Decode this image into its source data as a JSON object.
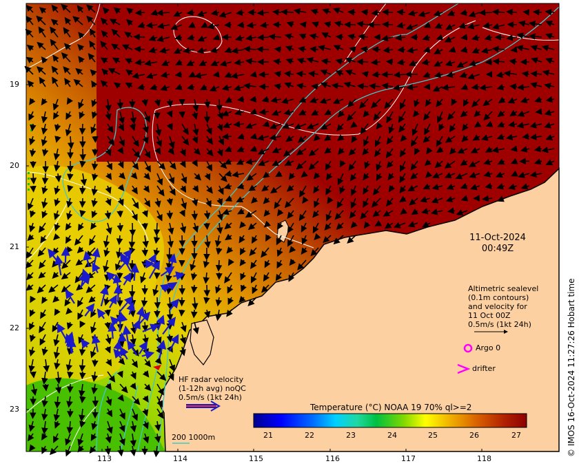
{
  "map": {
    "x_ticks": [
      "113",
      "114",
      "115",
      "116",
      "117",
      "118"
    ],
    "y_ticks": [
      "19",
      "20",
      "21",
      "22",
      "23"
    ],
    "colors": {
      "land": "#fcd0a0",
      "sea_warm": "#9e0000",
      "sea_mid": "#e07000",
      "sea_cool": "#d8c400",
      "sea_cold": "#66c800",
      "contour": "#ffffff",
      "isobath": "#40c8c8",
      "radar_arrows": "#1a1acc",
      "current_arrows": "#000000"
    }
  },
  "timestamp": {
    "date": "11-Oct-2024",
    "time": "00:49Z"
  },
  "altimetry_legend": {
    "line1": "Altimetric sealevel",
    "line2": "(0.1m contours)",
    "line3": "and velocity for",
    "line4": "11 Oct 00Z",
    "line5": "0.5m/s (1kt 24h)"
  },
  "argo_legend": {
    "label": "Argo 0",
    "color": "#ff00ff"
  },
  "drifter_legend": {
    "label": "drifter",
    "color": "#ff00ff"
  },
  "radar_legend": {
    "line1": "HF radar velocity",
    "line2": "(1-12h avg) noQC",
    "line3": "0.5m/s (1kt 24h)"
  },
  "isobath_legend": {
    "label": "200 1000m"
  },
  "colorbar": {
    "title": "Temperature (°C) NOAA 19 70% ql>=2",
    "ticks": [
      "21",
      "22",
      "23",
      "24",
      "25",
      "26",
      "27"
    ],
    "colors": [
      "#00008f",
      "#0000ff",
      "#0070ff",
      "#00d0ff",
      "#30e8c0",
      "#00c040",
      "#40d000",
      "#c0e000",
      "#ffff00",
      "#f0c000",
      "#e09000",
      "#d06000",
      "#b03000",
      "#900000"
    ]
  },
  "copyright": "© IMOS 16-Oct-2024 11:27:26 Hobart time"
}
